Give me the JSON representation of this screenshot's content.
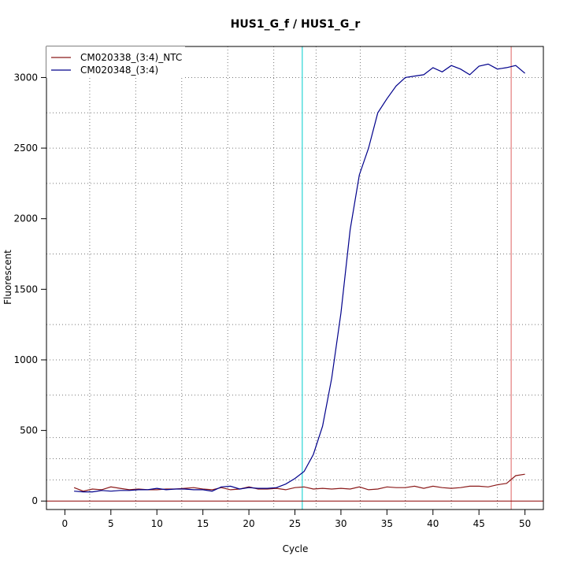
{
  "chart_data": {
    "type": "line",
    "title": "HUS1_G_f / HUS1_G_r",
    "xlabel": "Cycle",
    "ylabel": "Fluorescent",
    "xlim": [
      -2,
      52
    ],
    "ylim": [
      -60,
      3220
    ],
    "x_ticks": [
      0,
      5,
      10,
      15,
      20,
      25,
      30,
      35,
      40,
      45,
      50
    ],
    "y_ticks": [
      0,
      500,
      1000,
      1500,
      2000,
      2500,
      3000
    ],
    "grid": true,
    "grid_x": [
      2.7,
      7.7,
      12.7,
      17.7,
      22.7,
      27.3,
      32.1,
      37.0,
      42.0,
      47.0
    ],
    "grid_y": [
      150,
      300,
      450,
      750,
      1000,
      1250,
      1750,
      2250,
      2500,
      2750,
      3000
    ],
    "legend_position": "top-left",
    "threshold_y": 0,
    "threshold_color": "#8B0000",
    "vlines": [
      {
        "x": 25.8,
        "color": "#00CDCD"
      },
      {
        "x": 48.5,
        "color": "#E06060"
      }
    ],
    "x": [
      1,
      2,
      3,
      4,
      5,
      6,
      7,
      8,
      9,
      10,
      11,
      12,
      13,
      14,
      15,
      16,
      17,
      18,
      19,
      20,
      21,
      22,
      23,
      24,
      25,
      26,
      27,
      28,
      29,
      30,
      31,
      32,
      33,
      34,
      35,
      36,
      37,
      38,
      39,
      40,
      41,
      42,
      43,
      44,
      45,
      46,
      47,
      48,
      49,
      50
    ],
    "series": [
      {
        "name": "CM020338_(3:4)_NTC",
        "color": "#8B1A1A",
        "values": [
          95,
          70,
          85,
          80,
          100,
          90,
          80,
          85,
          80,
          80,
          85,
          85,
          90,
          95,
          85,
          80,
          95,
          80,
          85,
          100,
          85,
          85,
          90,
          80,
          95,
          100,
          85,
          90,
          85,
          90,
          85,
          100,
          80,
          85,
          100,
          95,
          95,
          105,
          90,
          105,
          95,
          90,
          95,
          105,
          105,
          100,
          115,
          125,
          180,
          190
        ]
      },
      {
        "name": "CM020348_(3:4)",
        "color": "#00008B",
        "values": [
          70,
          65,
          65,
          75,
          70,
          75,
          75,
          80,
          80,
          90,
          80,
          85,
          85,
          80,
          80,
          70,
          100,
          105,
          85,
          95,
          90,
          90,
          95,
          120,
          160,
          210,
          330,
          530,
          870,
          1330,
          1920,
          2310,
          2500,
          2750,
          2850,
          2940,
          3000,
          3010,
          3020,
          3070,
          3040,
          3085,
          3060,
          3020,
          3080,
          3095,
          3060,
          3070,
          3085,
          3030
        ]
      }
    ]
  }
}
